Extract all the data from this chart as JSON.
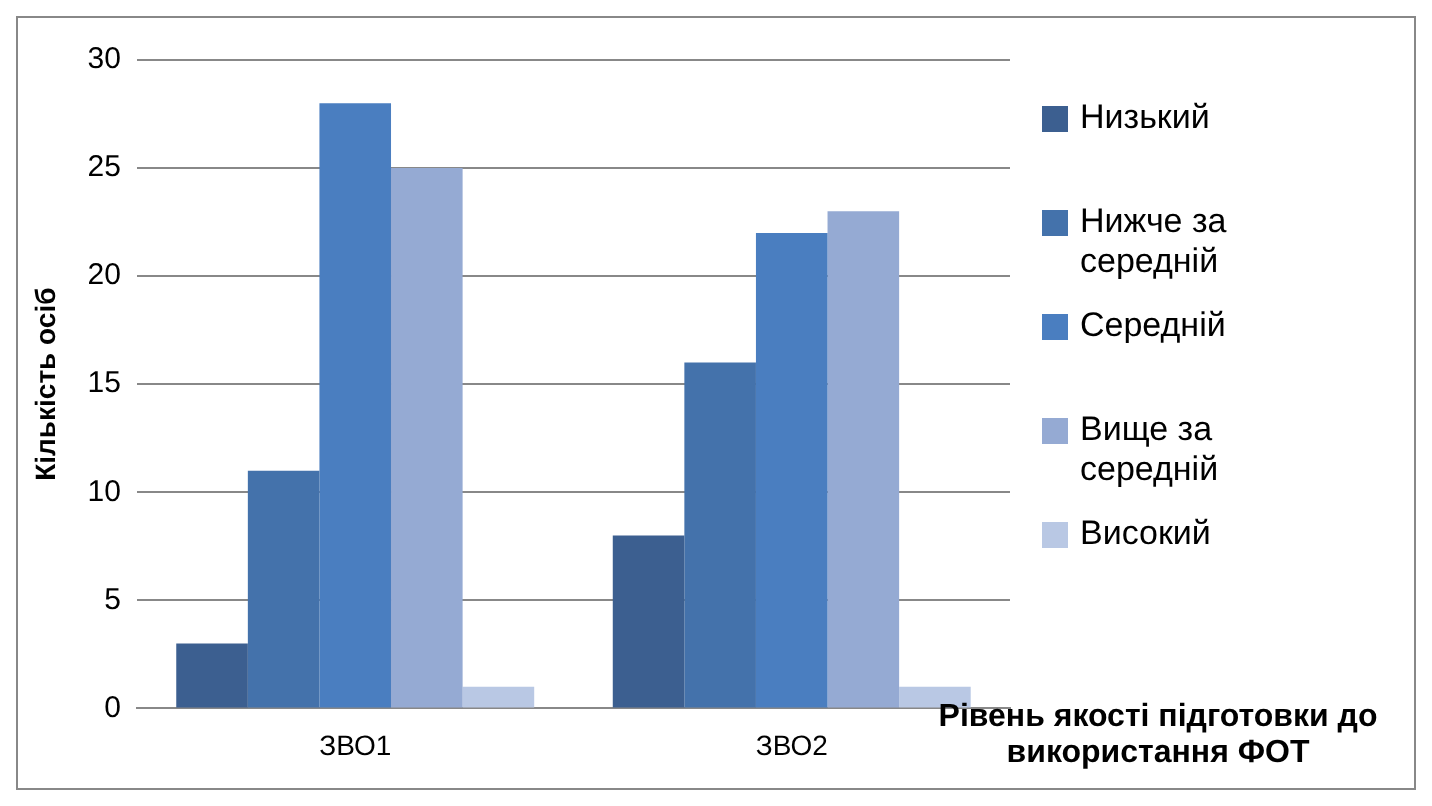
{
  "chart_data": {
    "type": "bar",
    "xlabel": "Рівень якості підготовки до використання ФОТ",
    "ylabel": "Кількість осіб",
    "categories": [
      "ЗВО1",
      "ЗВО2"
    ],
    "series": [
      {
        "name": "Низький",
        "color": "#3c5f90",
        "values": [
          3,
          8
        ]
      },
      {
        "name": "Нижче за середній",
        "color": "#4472ab",
        "values": [
          11,
          16
        ]
      },
      {
        "name": "Середній",
        "color": "#4a7ec0",
        "values": [
          28,
          22
        ]
      },
      {
        "name": "Вище за середній",
        "color": "#95aad3",
        "values": [
          25,
          23
        ]
      },
      {
        "name": "Високий",
        "color": "#b9c8e4",
        "values": [
          1,
          1
        ]
      }
    ],
    "ylim": [
      0,
      30
    ],
    "yticks": [
      0,
      5,
      10,
      15,
      20,
      25,
      30
    ],
    "grid": "y",
    "legend": "right"
  }
}
